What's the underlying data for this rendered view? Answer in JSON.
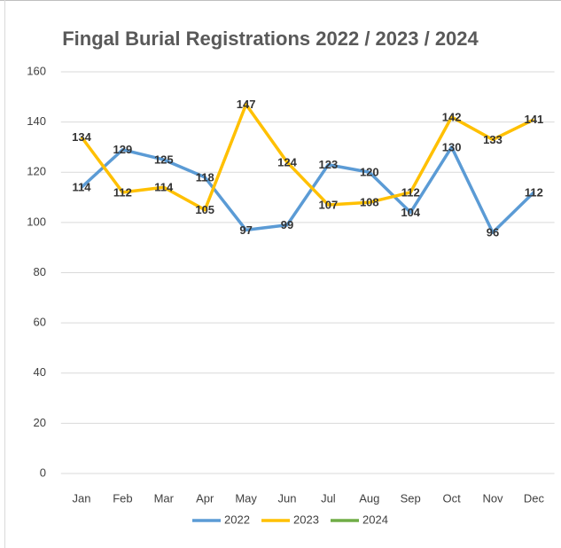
{
  "chart_data": {
    "type": "line",
    "title": "Fingal Burial Registrations 2022 / 2023 / 2024",
    "categories": [
      "Jan",
      "Feb",
      "Mar",
      "Apr",
      "May",
      "Jun",
      "Jul",
      "Aug",
      "Sep",
      "Oct",
      "Nov",
      "Dec"
    ],
    "series": [
      {
        "name": "2022",
        "color": "#5b9bd5",
        "values": [
          114,
          129,
          125,
          118,
          97,
          99,
          123,
          120,
          104,
          130,
          96,
          112
        ]
      },
      {
        "name": "2023",
        "color": "#ffc000",
        "values": [
          134,
          112,
          114,
          105,
          147,
          124,
          107,
          108,
          112,
          142,
          133,
          141
        ]
      },
      {
        "name": "2024",
        "color": "#70ad47",
        "values": [
          null,
          null,
          null,
          null,
          null,
          null,
          null,
          null,
          null,
          null,
          null,
          null
        ]
      }
    ],
    "ylim": [
      0,
      160
    ],
    "yticks": [
      0,
      20,
      40,
      60,
      80,
      100,
      120,
      140,
      160
    ],
    "grid": true,
    "legend": "bottom"
  }
}
